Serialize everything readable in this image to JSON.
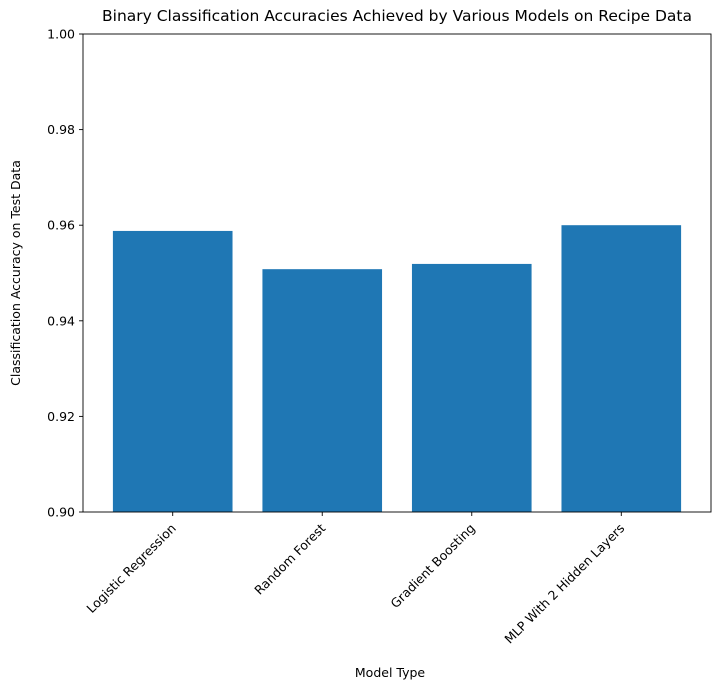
{
  "chart_data": {
    "type": "bar",
    "title": "Binary Classification Accuracies Achieved by Various Models on Recipe Data",
    "xlabel": "Model Type",
    "ylabel": "Classification Accuracy on Test Data",
    "categories": [
      "Logistic Regression",
      "Random Forest",
      "Gradient Boosting",
      "MLP With 2 Hidden Layers"
    ],
    "values": [
      0.9588,
      0.9508,
      0.9519,
      0.96
    ],
    "ylim": [
      0.9,
      1.0
    ],
    "yticks": [
      0.9,
      0.92,
      0.94,
      0.96,
      0.98,
      1.0
    ],
    "ytick_labels": [
      "0.90",
      "0.92",
      "0.94",
      "0.96",
      "0.98",
      "1.00"
    ],
    "bar_color": "#1f77b4",
    "grid": false,
    "legend": "none"
  }
}
